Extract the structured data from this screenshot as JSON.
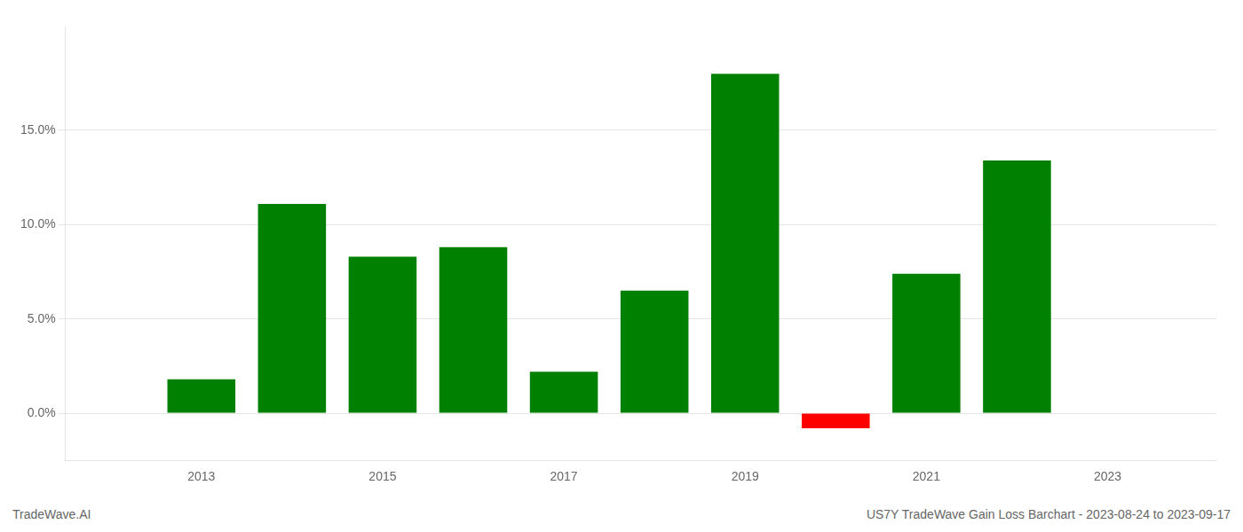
{
  "chart_data": {
    "type": "bar",
    "x": [
      2013,
      2014,
      2015,
      2016,
      2017,
      2018,
      2019,
      2020,
      2021,
      2022
    ],
    "values": [
      0.018,
      0.111,
      0.083,
      0.088,
      0.022,
      0.065,
      0.18,
      -0.008,
      0.074,
      0.134
    ],
    "colors": [
      "#008000",
      "#008000",
      "#008000",
      "#008000",
      "#008000",
      "#008000",
      "#008000",
      "#ff0000",
      "#008000",
      "#008000"
    ],
    "xlim": [
      2011.5,
      2024.2
    ],
    "xticks": [
      2013,
      2015,
      2017,
      2019,
      2021,
      2023
    ],
    "ylim": [
      -0.025,
      0.205
    ],
    "yticks": [
      {
        "value": 0.0,
        "label": "0.0%"
      },
      {
        "value": 0.05,
        "label": "5.0%"
      },
      {
        "value": 0.1,
        "label": "10.0%"
      },
      {
        "value": 0.15,
        "label": "15.0%"
      }
    ],
    "grid": true,
    "annotations": [
      "TradeWave.AI",
      "US7Y TradeWave Gain Loss Barchart - 2023-08-24 to 2023-09-17"
    ]
  }
}
